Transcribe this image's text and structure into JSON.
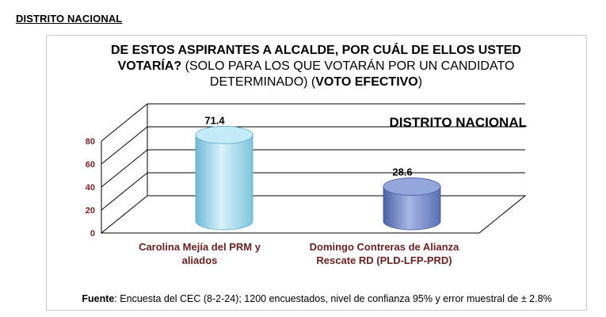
{
  "page": {
    "heading": "DISTRITO NACIONAL"
  },
  "chart_data": {
    "type": "bar",
    "title_bold_1": "DE ESTOS ASPIRANTES A ALCALDE, POR CUÁL DE ELLOS USTED",
    "title_bold_2": "VOTARÍA?",
    "title_regular_2": " (SOLO PARA LOS QUE VOTARÁN POR UN CANDIDATO",
    "title_regular_3": "DETERMINADO) (",
    "title_bold_3": "VOTO EFECTIVO",
    "title_regular_3_end": ")",
    "inner_label": "DISTRITO NACIONAL",
    "categories": [
      "Carolina Mejía del PRM y aliados",
      "Domingo Contreras de Alianza Rescate RD (PLD-LFP-PRD)"
    ],
    "category_lines": [
      [
        "Carolina Mejía del PRM y",
        "aliados"
      ],
      [
        "Domingo Contreras de Alianza",
        "Rescate RD (PLD-LFP-PRD)"
      ]
    ],
    "values": [
      71.4,
      28.6
    ],
    "value_labels": [
      "71.4",
      "28.6"
    ],
    "ylim": [
      0,
      80
    ],
    "yticks": [
      "0",
      "20",
      "40",
      "60",
      "80"
    ],
    "xlabel": "",
    "ylabel": "",
    "grid": true,
    "bar_colors": [
      "#a8dcf0",
      "#7e94cc"
    ],
    "tick_color": "#7a1f1f",
    "category_color": "#6b1f1f"
  },
  "source": {
    "label": "Fuente",
    "text": ": Encuesta del CEC (8-2-24); 1200 encuestados, nivel de confianza 95% y error muestral de ± 2.8%"
  }
}
